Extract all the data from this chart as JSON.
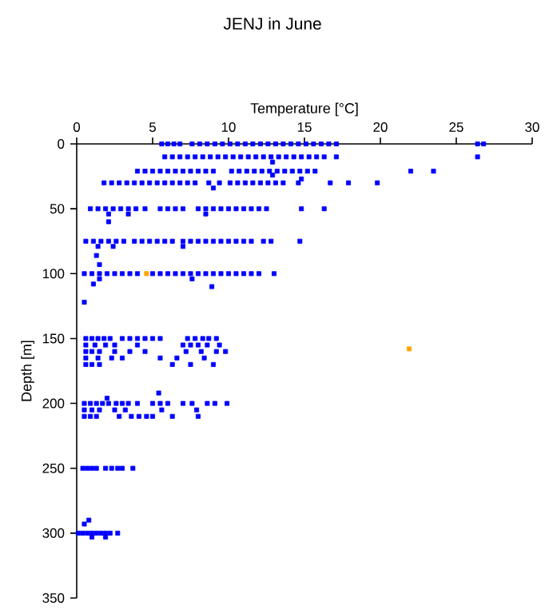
{
  "chart_data": {
    "type": "scatter",
    "title": "JENJ in June",
    "xlabel": "Temperature [°C]",
    "ylabel": "Depth [m]",
    "xlim": [
      0,
      30
    ],
    "xticks": [
      0,
      5,
      10,
      15,
      20,
      25,
      30
    ],
    "ylim": [
      350,
      0
    ],
    "yticks": [
      0,
      50,
      100,
      150,
      200,
      250,
      300,
      350
    ],
    "marker": "square",
    "series": [
      {
        "color": "#0000ff",
        "x": [
          5.6,
          6,
          6.4,
          6.8,
          7.6,
          8.1,
          8.6,
          9.1,
          9.6,
          10.1,
          10.6,
          11.1,
          11.6,
          12.1,
          12.6,
          13.1,
          13.6,
          14.1,
          14.6,
          15.1,
          15.6,
          16.1,
          16.6,
          17.1,
          26.4,
          26.8,
          5.8,
          6.3,
          6.8,
          7.3,
          7.8,
          8.3,
          8.8,
          9.3,
          9.8,
          10.3,
          10.8,
          11.3,
          11.8,
          12.3,
          12.8,
          13.3,
          13.8,
          14.3,
          14.8,
          15.3,
          15.8,
          16.3,
          17.1,
          26.4,
          12.9,
          4,
          4.5,
          5,
          5.5,
          6,
          6.5,
          7,
          7.5,
          8,
          8.5,
          9,
          10.2,
          10.7,
          11.2,
          11.7,
          12.2,
          12.7,
          13.2,
          13.7,
          14.2,
          14.7,
          15.2,
          15.7,
          22,
          23.5,
          12.9,
          1.8,
          2.3,
          2.8,
          3.3,
          3.8,
          4.3,
          4.8,
          5.3,
          5.8,
          6.3,
          6.8,
          7.3,
          7.8,
          8.7,
          9.4,
          10.1,
          10.6,
          11.1,
          11.6,
          12.1,
          12.6,
          13.1,
          13.6,
          14.6,
          16.7,
          17.9,
          19.8,
          9,
          14.8,
          0.9,
          1.4,
          1.9,
          2.4,
          2.9,
          3.4,
          3.9,
          4.5,
          5.5,
          6,
          6.5,
          7,
          8,
          8.5,
          9,
          9.5,
          10,
          10.5,
          11,
          11.5,
          12,
          12.5,
          14.8,
          16.3,
          2.1,
          3.4,
          8.5,
          2.1,
          0.6,
          1.1,
          1.6,
          2.1,
          2.6,
          3.1,
          3.8,
          4.3,
          4.8,
          5.3,
          5.8,
          6.3,
          7,
          7.5,
          8,
          8.5,
          9,
          9.5,
          10,
          10.5,
          11,
          11.5,
          12.3,
          12.8,
          14.7,
          1.4,
          2.4,
          7,
          1.3,
          1.5,
          0.5,
          1,
          1.5,
          2,
          2.5,
          3,
          3.5,
          4,
          5,
          5.5,
          6,
          6.5,
          7,
          7.5,
          8,
          8.5,
          9,
          9.5,
          10,
          10.5,
          11,
          11.5,
          12,
          13,
          1.5,
          7.6,
          1.1,
          8.9,
          0.5,
          0.6,
          1,
          1.4,
          1.8,
          2.2,
          3,
          3.5,
          4,
          4.5,
          5,
          5.5,
          7.3,
          7.8,
          8.3,
          8.7,
          9.2,
          0.6,
          1.2,
          1.9,
          2.5,
          4,
          7,
          7.5,
          8,
          8.6,
          9.4,
          0.6,
          1,
          1.5,
          2.5,
          3.5,
          4.5,
          7.2,
          8.2,
          9.2,
          9.8,
          0.6,
          1.4,
          2.3,
          3,
          5.5,
          6.6,
          8.4,
          0.6,
          1,
          1.5,
          6.3,
          7.5,
          9,
          0.5,
          0.9,
          1.3,
          1.7,
          2.1,
          2.6,
          3,
          3.4,
          4,
          5,
          5.5,
          6,
          7,
          7.6,
          8.6,
          9.1,
          9.9,
          0.5,
          1,
          1.5,
          2.5,
          3.2,
          5.6,
          7.9,
          0.5,
          0.9,
          1.3,
          2.8,
          3.6,
          4.1,
          4.6,
          5,
          6.3,
          8,
          5.4,
          2,
          0.4,
          0.7,
          1,
          1.3,
          1.9,
          2.3,
          2.7,
          3,
          3.7,
          0.8,
          0.5,
          0.1,
          0.4,
          0.7,
          1,
          1.3,
          1.6,
          1.9,
          2.2,
          2.7,
          1,
          1.9
        ],
        "values": [
          0,
          0,
          0,
          0,
          0,
          0,
          0,
          0,
          0,
          0,
          0,
          0,
          0,
          0,
          0,
          0,
          0,
          0,
          0,
          0,
          0,
          0,
          0,
          0,
          0,
          0,
          10,
          10,
          10,
          10,
          10,
          10,
          10,
          10,
          10,
          10,
          10,
          10,
          10,
          10,
          10,
          10,
          10,
          10,
          10,
          10,
          10,
          10,
          10,
          10,
          14,
          21,
          21,
          21,
          21,
          21,
          21,
          21,
          21,
          21,
          21,
          21,
          21,
          21,
          21,
          21,
          21,
          21,
          21,
          21,
          21,
          21,
          21,
          21,
          21,
          21,
          24,
          30,
          30,
          30,
          30,
          30,
          30,
          30,
          30,
          30,
          30,
          30,
          30,
          30,
          30,
          30,
          30,
          30,
          30,
          30,
          30,
          30,
          30,
          30,
          30,
          30,
          30,
          30,
          34,
          27,
          50,
          50,
          50,
          50,
          50,
          50,
          50,
          50,
          50,
          50,
          50,
          50,
          50,
          50,
          50,
          50,
          50,
          50,
          50,
          50,
          50,
          50,
          50,
          50,
          54,
          54,
          54,
          60,
          75,
          75,
          75,
          75,
          75,
          75,
          75,
          75,
          75,
          75,
          75,
          75,
          75,
          75,
          75,
          75,
          75,
          75,
          75,
          75,
          75,
          75,
          75,
          75,
          75,
          79,
          79,
          79,
          86,
          93,
          100,
          100,
          100,
          100,
          100,
          100,
          100,
          100,
          100,
          100,
          100,
          100,
          100,
          100,
          100,
          100,
          100,
          100,
          100,
          100,
          100,
          100,
          100,
          100,
          104,
          104,
          108,
          110,
          122,
          150,
          150,
          150,
          150,
          150,
          150,
          150,
          150,
          150,
          150,
          150,
          150,
          150,
          150,
          150,
          150,
          155,
          155,
          155,
          155,
          155,
          155,
          155,
          155,
          155,
          155,
          160,
          160,
          160,
          160,
          160,
          160,
          160,
          160,
          160,
          160,
          165,
          165,
          165,
          165,
          165,
          165,
          165,
          170,
          170,
          170,
          170,
          170,
          170,
          200,
          200,
          200,
          200,
          200,
          200,
          200,
          200,
          200,
          200,
          200,
          200,
          200,
          200,
          200,
          200,
          200,
          205,
          205,
          205,
          205,
          205,
          205,
          205,
          210,
          210,
          210,
          210,
          210,
          210,
          210,
          210,
          210,
          210,
          192,
          196,
          250,
          250,
          250,
          250,
          250,
          250,
          250,
          250,
          250,
          290,
          293,
          300,
          300,
          300,
          300,
          300,
          300,
          300,
          300,
          300,
          303,
          303
        ]
      },
      {
        "color": "#ffa500",
        "x": [
          4.6,
          21.9
        ],
        "values": [
          100,
          158
        ]
      }
    ]
  }
}
